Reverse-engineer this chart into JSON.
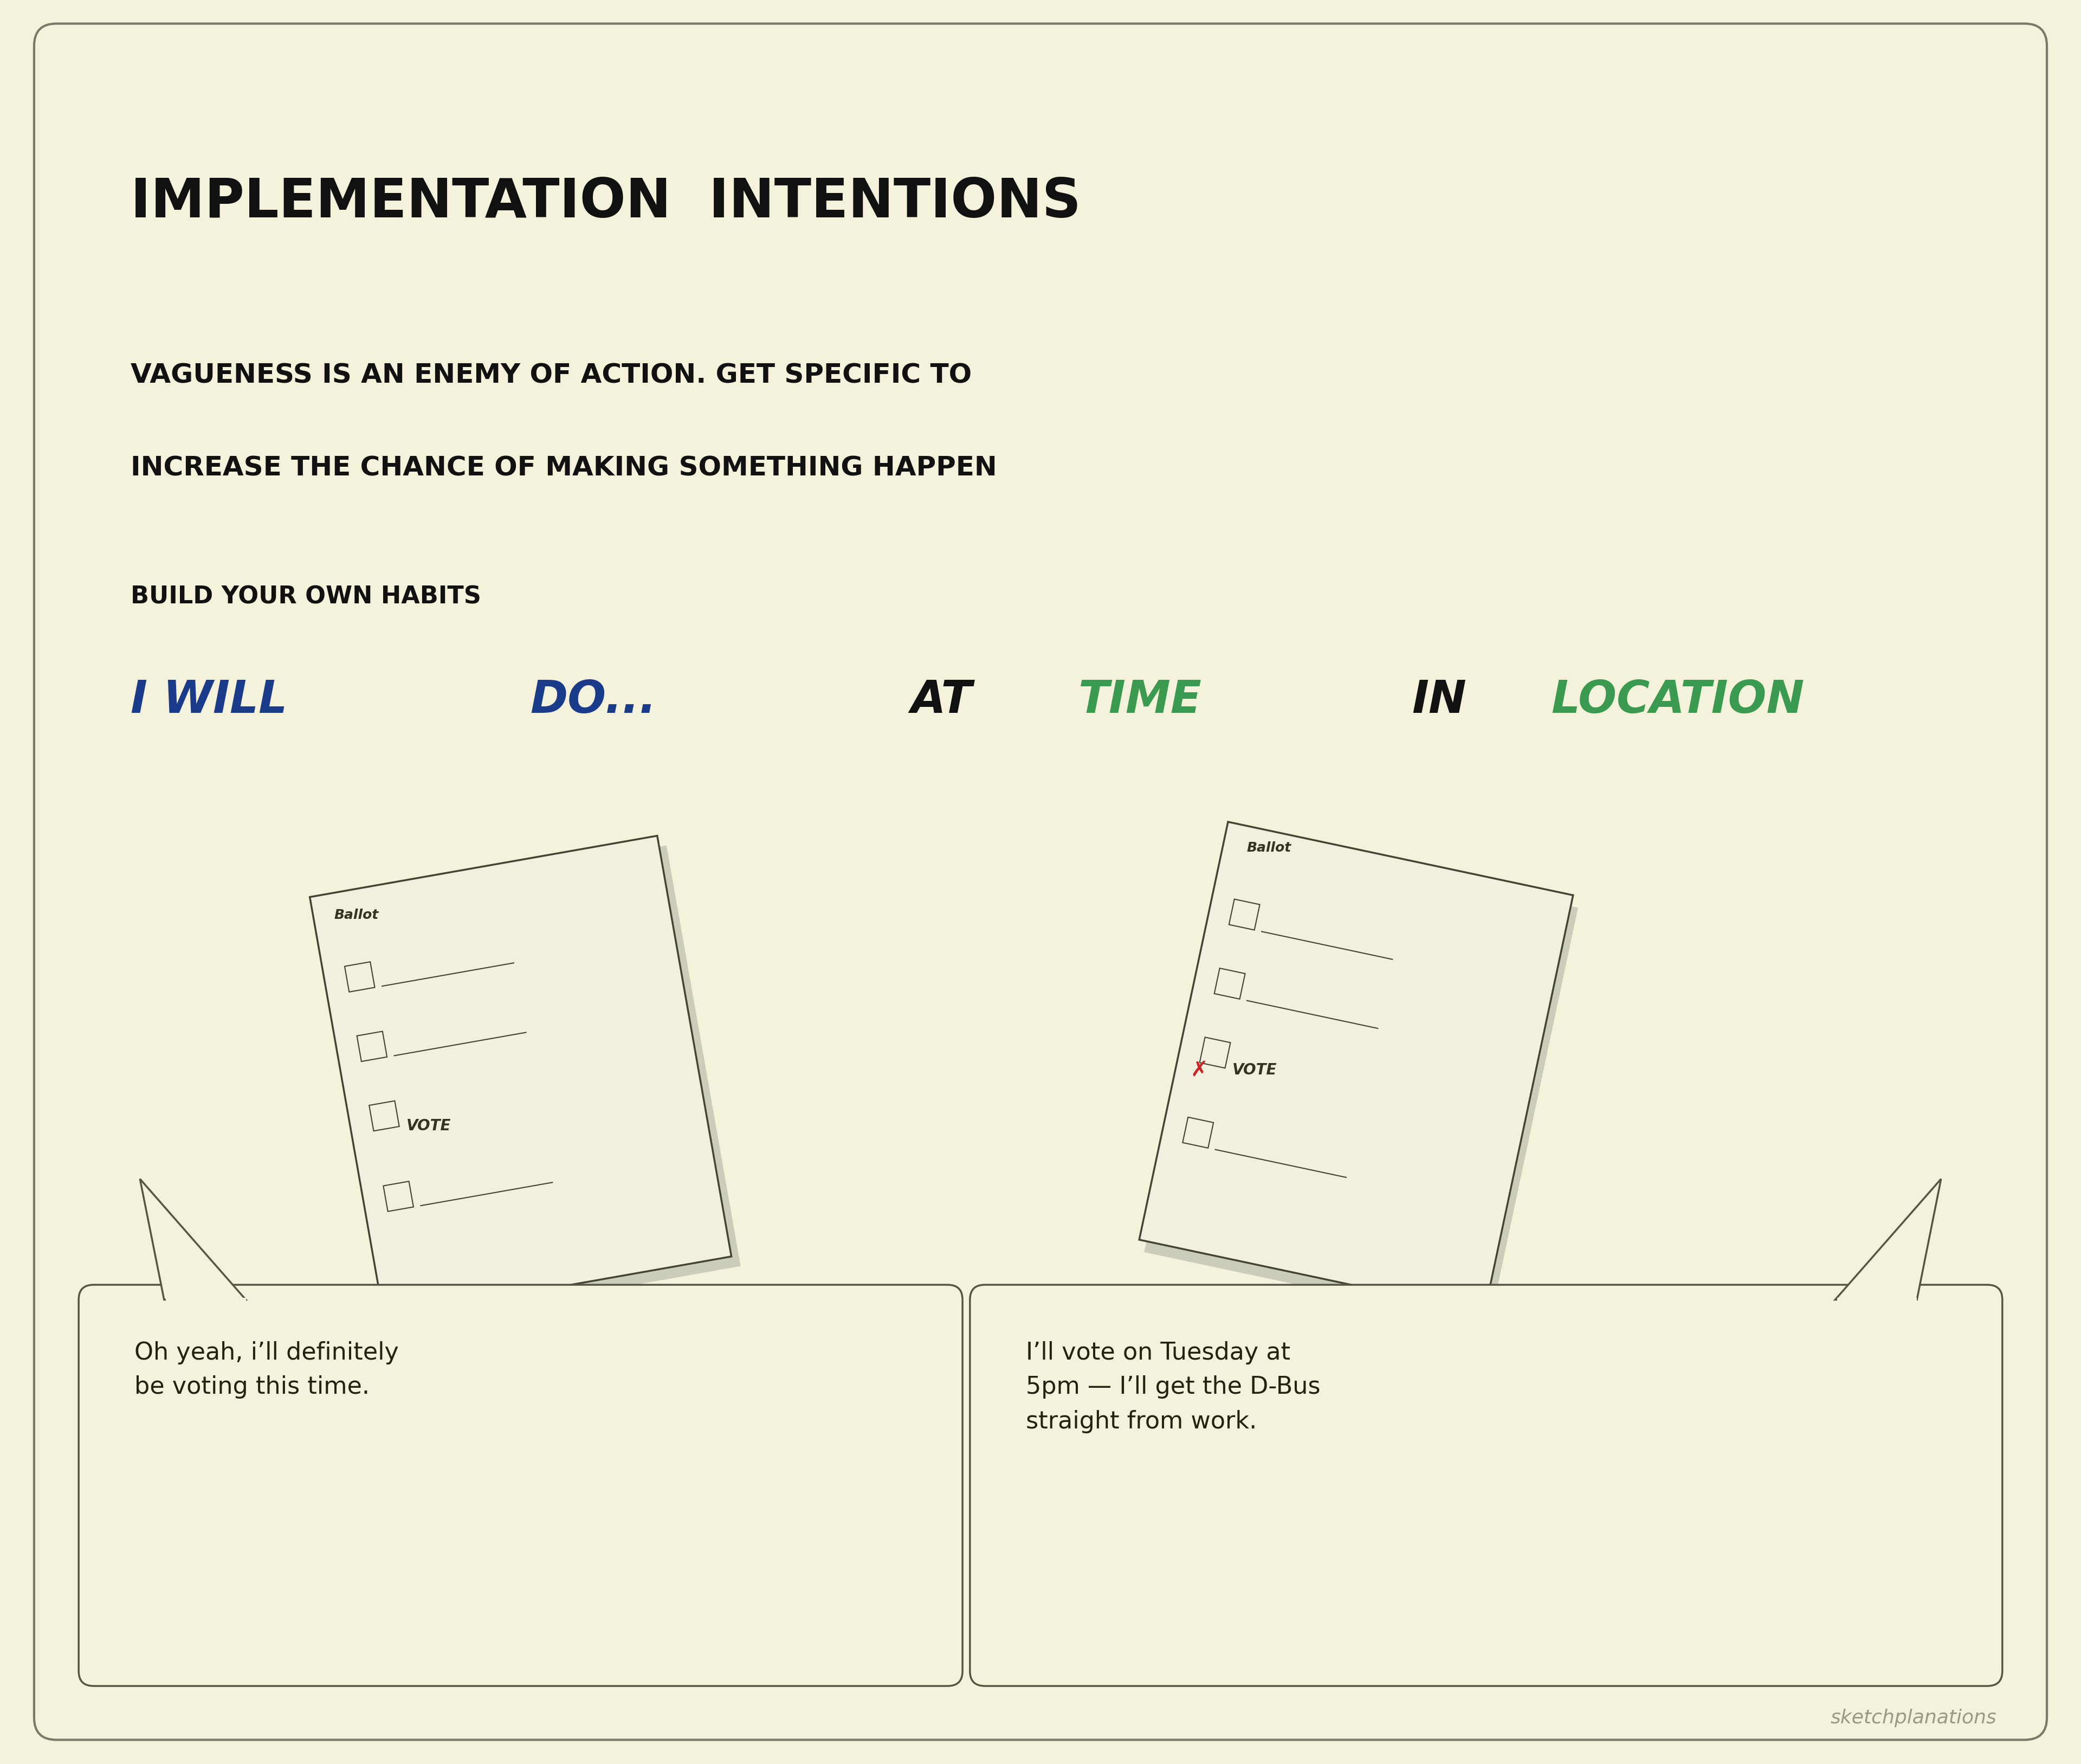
{
  "bg_color": "#f5f2dc",
  "border_color": "#7a7a6a",
  "title": "IMPLEMENTATION  INTENTIONS",
  "subtitle_line1": "VAGUENESS IS AN ENEMY OF ACTION. GET SPECIFIC TO",
  "subtitle_line2": "INCREASE THE CHANCE OF MAKING SOMETHING HAPPEN",
  "habit_label": "BUILD YOUR OWN HABITS",
  "left_bubble_text": "Oh yeah, i’ll definitely\nbe voting this time.",
  "right_bubble_text": "I’ll vote on Tuesday at\n5pm — I’ll get the D-Bus\nstraight from work.",
  "watermark": "sketchplanations",
  "title_color": "#111111",
  "subtitle_color": "#111111",
  "habit_color": "#111111",
  "bg_color_inner": "#f5f2dc",
  "formula_i_will_color": "#1a3a8a",
  "formula_do_color": "#1a3a8a",
  "formula_at_color": "#111111",
  "formula_time_color": "#3a9a50",
  "formula_in_color": "#111111",
  "formula_location_color": "#3a9a50",
  "bubble_border": "#555544",
  "ballot_paper_color": "#f0efe0",
  "ballot_border_color": "#444433",
  "ballot_text_color": "#333322",
  "x_mark_color": "#cc2222"
}
